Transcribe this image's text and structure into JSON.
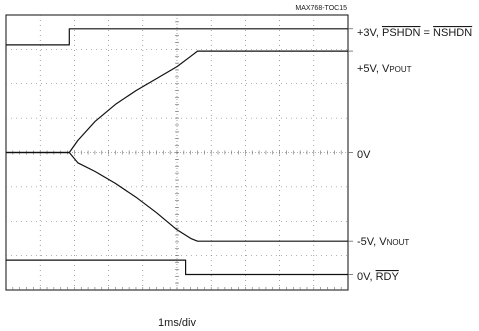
{
  "chart_data": {
    "type": "line",
    "figure_id": "MAX768-TOC15",
    "xlabel": "1ms/div",
    "grid": true,
    "divisions": {
      "x": 10,
      "y": 8
    },
    "series": [
      {
        "name": "PSHDN = NSHDN",
        "level": "+3V",
        "x": [
          0,
          1.85,
          1.85,
          10
        ],
        "y": [
          7.13,
          7.13,
          7.6,
          7.6
        ]
      },
      {
        "name": "VPOUT",
        "level": "+5V",
        "x": [
          0,
          1.85,
          2.1,
          2.6,
          3.2,
          3.8,
          4.4,
          5.0,
          5.4,
          5.6,
          10
        ],
        "y": [
          4.0,
          4.0,
          4.35,
          4.9,
          5.4,
          5.8,
          6.15,
          6.5,
          6.8,
          6.95,
          6.95
        ]
      },
      {
        "name": "VNOUT",
        "level": "-5V",
        "x": [
          0,
          1.85,
          2.1,
          2.6,
          3.2,
          3.8,
          4.4,
          5.0,
          5.4,
          5.6,
          10
        ],
        "y": [
          4.0,
          4.0,
          3.7,
          3.45,
          3.1,
          2.7,
          2.25,
          1.75,
          1.5,
          1.42,
          1.42
        ]
      },
      {
        "name": "RDY",
        "level": "0V",
        "x": [
          0,
          5.25,
          5.25,
          10
        ],
        "y": [
          0.87,
          0.87,
          0.45,
          0.45
        ]
      }
    ],
    "labels": {
      "shdn_prefix": "+3V, ",
      "pshdn": "PSHDN",
      "eq": " = ",
      "nshdn": "NSHDN",
      "vpout_prefix": "+5V, V",
      "vpout_sub": "POUT",
      "zero": "0V",
      "vnout_prefix": "-5V, V",
      "vnout_sub": "NOUT",
      "rdy_prefix": "0V, ",
      "rdy": "RDY"
    }
  }
}
